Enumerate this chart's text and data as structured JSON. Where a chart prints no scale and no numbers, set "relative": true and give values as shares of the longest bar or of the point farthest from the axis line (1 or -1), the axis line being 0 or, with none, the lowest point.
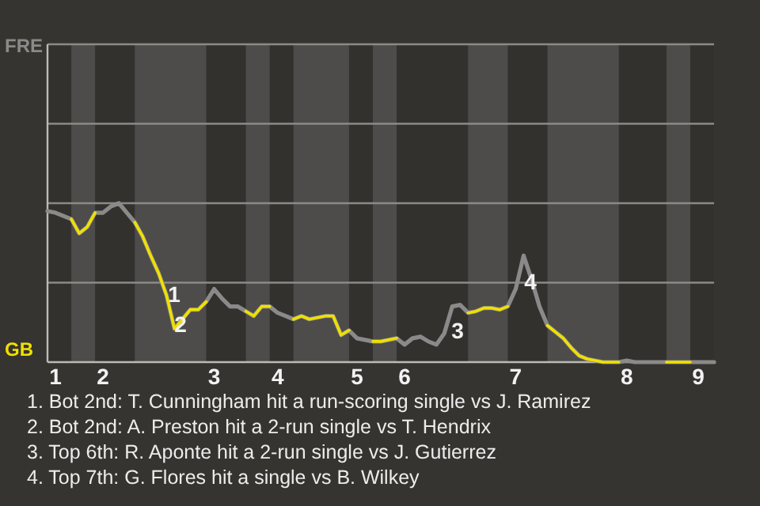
{
  "chart_data": {
    "type": "line",
    "relative": true,
    "categories": [
      null,
      "1",
      null,
      null,
      null,
      null,
      null,
      "2",
      null,
      null,
      null,
      null,
      null,
      null,
      null,
      null,
      null,
      null,
      null,
      null,
      null,
      "3",
      null,
      null,
      null,
      null,
      null,
      null,
      null,
      "4",
      null,
      null,
      null,
      null,
      null,
      null,
      null,
      null,
      null,
      "5",
      null,
      null,
      null,
      null,
      null,
      "6",
      null,
      null,
      null,
      null,
      null,
      null,
      null,
      null,
      null,
      null,
      null,
      null,
      null,
      "7",
      null,
      null,
      null,
      null,
      null,
      null,
      null,
      null,
      null,
      null,
      null,
      null,
      null,
      "8",
      null,
      null,
      null,
      null,
      null,
      null,
      null,
      null,
      "9",
      null,
      null
    ],
    "series": [
      {
        "color": "#8a8a8a",
        "values": [
          0.95,
          0.94,
          0.92,
          0.9,
          0.81,
          0.85,
          0.94,
          0.94,
          0.98,
          1,
          0.94,
          0.88,
          0.79,
          0.67,
          0.56,
          0.42,
          0.21,
          0.27,
          0.33,
          0.33,
          0.38,
          0.46,
          0.4,
          0.35,
          0.35,
          0.32,
          0.29,
          0.35,
          0.35,
          0.31,
          0.29,
          0.27,
          0.29,
          0.27,
          0.28,
          0.29,
          0.29,
          0.17,
          0.2,
          0.15,
          0.14,
          0.13,
          0.13,
          0.14,
          0.15,
          0.11,
          0.15,
          0.16,
          0.13,
          0.11,
          0.18,
          0.35,
          0.36,
          0.31,
          0.32,
          0.34,
          0.34,
          0.33,
          0.35,
          0.46,
          0.67,
          0.52,
          0.35,
          0.23,
          0.19,
          0.15,
          0.09,
          0.04,
          0.02,
          0.01,
          0,
          0,
          0,
          0.01,
          0,
          0,
          0,
          0,
          0,
          0,
          0,
          0,
          0,
          0,
          0
        ]
      },
      {
        "color": "#f0e000",
        "values": [
          null,
          null,
          null,
          0.9,
          0.81,
          0.85,
          0.94,
          null,
          null,
          null,
          null,
          0.88,
          0.79,
          0.67,
          0.56,
          0.42,
          0.21,
          0.27,
          0.33,
          0.33,
          0.38,
          null,
          null,
          null,
          null,
          0.32,
          0.29,
          0.35,
          0.35,
          null,
          null,
          0.27,
          0.29,
          0.27,
          0.28,
          0.29,
          0.29,
          0.17,
          0.2,
          null,
          null,
          0.13,
          0.13,
          0.14,
          0.15,
          null,
          null,
          null,
          null,
          null,
          null,
          null,
          null,
          0.31,
          0.32,
          0.34,
          0.34,
          0.33,
          0.35,
          null,
          null,
          null,
          null,
          0.23,
          0.19,
          0.15,
          0.09,
          0.04,
          0.02,
          0.01,
          0,
          0,
          0,
          null,
          null,
          null,
          null,
          null,
          0,
          0,
          0,
          0,
          null,
          null,
          null
        ]
      }
    ],
    "marker": "none",
    "line_style": "solid",
    "ref_lines": [
      {
        "axis": "y",
        "value": 0.5,
        "color": "#8c8a86"
      },
      {
        "axis": "y",
        "value": 1,
        "color": "#8c8a86"
      },
      {
        "axis": "y",
        "value": 1.5,
        "color": "#8c8a86"
      },
      {
        "axis": "y",
        "value": 2,
        "color": "#8c8a86"
      }
    ],
    "annotations": [
      "FRE",
      "GB",
      "1",
      "2",
      "3",
      "4",
      "1. Bot 2nd: T. Cunningham hit a run-scoring single vs J. Ramirez",
      "2. Bot 2nd: A. Preston hit a 2-run single vs T. Hendrix",
      "3. Top 6th: R. Aponte hit a 2-run single vs J. Gutierrez",
      "4. Top 7th: G. Flores hit a single vs B. Wilkey"
    ]
  }
}
